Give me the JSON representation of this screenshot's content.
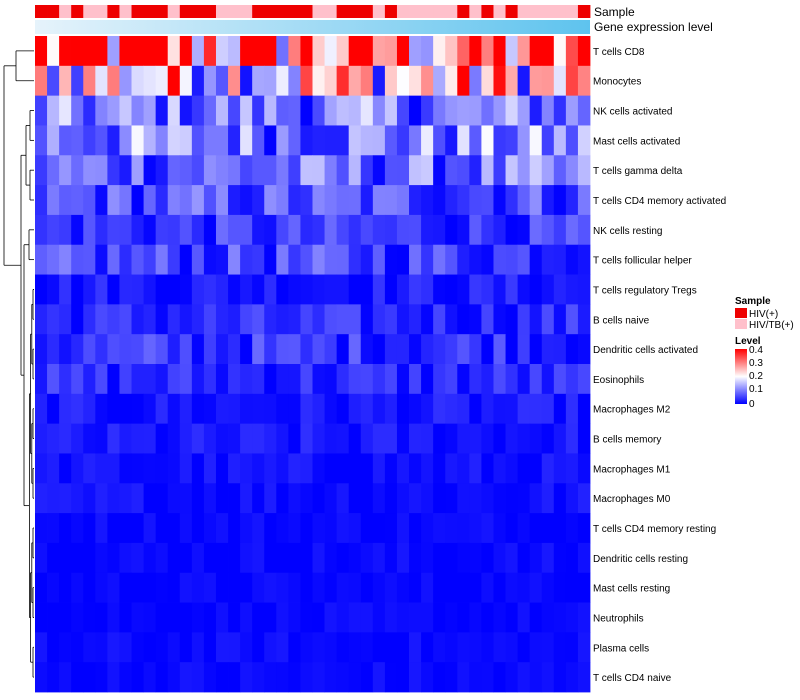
{
  "chart_data": {
    "type": "heatmap",
    "title": "",
    "annotation_tracks": [
      "Sample",
      "Gene expression level"
    ],
    "rows": [
      "T cells CD8",
      "Monocytes",
      "NK cells activated",
      "Mast cells activated",
      "T cells gamma delta",
      "T cells CD4 memory activated",
      "NK cells resting",
      "T cells follicular helper",
      "T cells regulatory  Tregs",
      "B cells naive",
      "Dendritic cells activated",
      "Eosinophils",
      "Macrophages M2",
      "B cells memory",
      "Macrophages M1",
      "Macrophages M0",
      "T cells CD4 memory resting",
      "Dendritic cells resting",
      "Mast cells resting",
      "Neutrophils",
      "Plasma cells",
      "T cells CD4 naive"
    ],
    "row_base_levels": [
      0.32,
      0.22,
      0.09,
      0.1,
      0.08,
      0.06,
      0.04,
      0.05,
      0.02,
      0.03,
      0.04,
      0.03,
      0.015,
      0.015,
      0.01,
      0.01,
      0.005,
      0.005,
      0.003,
      0.003,
      0.005,
      0.005
    ],
    "columns": 46,
    "sample_groups": [
      "HIV(+)",
      "HIV(+)",
      "HIV/TB(+)",
      "HIV(+)",
      "HIV/TB(+)",
      "HIV/TB(+)",
      "HIV(+)",
      "HIV/TB(+)",
      "HIV(+)",
      "HIV(+)",
      "HIV(+)",
      "HIV/TB(+)",
      "HIV(+)",
      "HIV(+)",
      "HIV(+)",
      "HIV/TB(+)",
      "HIV/TB(+)",
      "HIV/TB(+)",
      "HIV(+)",
      "HIV(+)",
      "HIV(+)",
      "HIV(+)",
      "HIV(+)",
      "HIV/TB(+)",
      "HIV/TB(+)",
      "HIV(+)",
      "HIV(+)",
      "HIV(+)",
      "HIV/TB(+)",
      "HIV(+)",
      "HIV/TB(+)",
      "HIV/TB(+)",
      "HIV/TB(+)",
      "HIV/TB(+)",
      "HIV/TB(+)",
      "HIV(+)",
      "HIV/TB(+)",
      "HIV(+)",
      "HIV/TB(+)",
      "HIV(+)",
      "HIV/TB(+)",
      "HIV/TB(+)",
      "HIV/TB(+)",
      "HIV/TB(+)",
      "HIV/TB(+)",
      "HIV(+)"
    ],
    "legend": {
      "sample": {
        "title": "Sample",
        "entries": [
          {
            "label": "HIV(+)",
            "color": "#ee0000"
          },
          {
            "label": "HIV/TB(+)",
            "color": "#ffc0cb"
          }
        ]
      },
      "level": {
        "title": "Level",
        "ticks": [
          "0.4",
          "0.3",
          "0.2",
          "0.1",
          "0"
        ],
        "range": [
          0,
          0.4
        ],
        "colors": [
          "#0000ff",
          "#ffffff",
          "#ff0000"
        ]
      }
    }
  }
}
